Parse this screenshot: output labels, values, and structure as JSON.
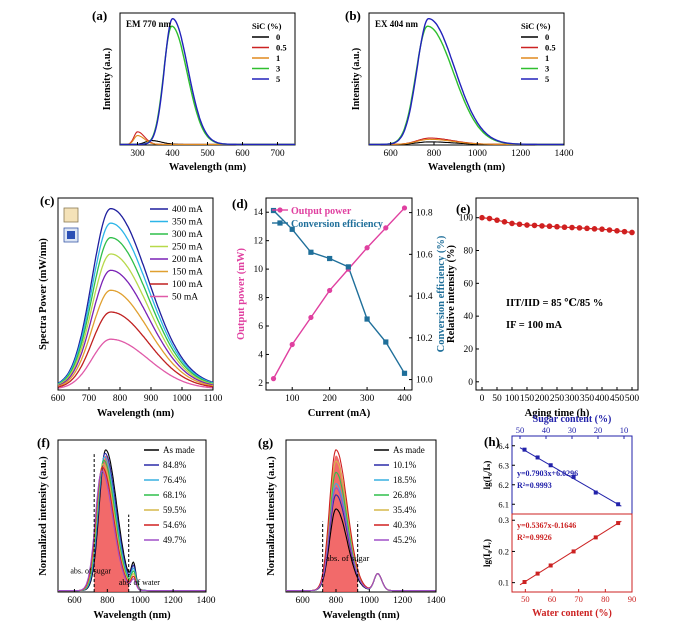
{
  "chart_data": [
    {
      "panel": "(a)",
      "type": "line",
      "annotation": "EM 770 nm",
      "legend_title": "SiC (%)",
      "legend": [
        "0",
        "0.5",
        "1",
        "3",
        "5"
      ],
      "colors": [
        "#000000",
        "#cc2222",
        "#e08a1e",
        "#2fbf2f",
        "#2222bb"
      ],
      "xlabel": "Wavelength (nm)",
      "ylabel": "Intensity (a.u.)",
      "xticks": [
        "300",
        "400",
        "500",
        "600",
        "700"
      ],
      "xlim": [
        250,
        750
      ],
      "ylim": [
        0,
        1.05
      ],
      "peaks": [
        {
          "center": 340,
          "amp": 0.03,
          "wl": 25,
          "wr": 40
        },
        {
          "center": 300,
          "amp": 0.1,
          "wl": 14,
          "wr": 28
        },
        {
          "center": 300,
          "amp": 0.07,
          "wl": 14,
          "wr": 28
        },
        {
          "center": 398,
          "amp": 0.94,
          "wl": 33,
          "wr": 62
        },
        {
          "center": 400,
          "amp": 1.0,
          "wl": 33,
          "wr": 62
        }
      ]
    },
    {
      "panel": "(b)",
      "type": "line",
      "annotation": "EX 404 nm",
      "legend_title": "SiC (%)",
      "legend": [
        "0",
        "0.5",
        "1",
        "3",
        "5"
      ],
      "colors": [
        "#000000",
        "#cc2222",
        "#e08a1e",
        "#2fbf2f",
        "#2222bb"
      ],
      "xlabel": "Wavelength (nm)",
      "ylabel": "Intensity (a.u.)",
      "xticks": [
        "600",
        "800",
        "1000",
        "1200",
        "1400"
      ],
      "xlim": [
        500,
        1400
      ],
      "ylim": [
        0,
        1.05
      ],
      "peaks": [
        {
          "center": 780,
          "amp": 0.02,
          "wl": 80,
          "wr": 150
        },
        {
          "center": 780,
          "amp": 0.05,
          "wl": 80,
          "wr": 150
        },
        {
          "center": 780,
          "amp": 0.04,
          "wl": 80,
          "wr": 150
        },
        {
          "center": 770,
          "amp": 0.94,
          "wl": 75,
          "wr": 170
        },
        {
          "center": 775,
          "amp": 1.0,
          "wl": 75,
          "wr": 170
        }
      ]
    },
    {
      "panel": "(c)",
      "type": "line",
      "legend": [
        "400 mA",
        "350 mA",
        "300 mA",
        "250 mA",
        "200 mA",
        "150 mA",
        "100 mA",
        "50  mA"
      ],
      "colors": [
        "#1f1f9e",
        "#2cb5e8",
        "#2fbf4a",
        "#b7d94a",
        "#7a22b5",
        "#e0a030",
        "#c02020",
        "#e05aa8"
      ],
      "amps": [
        1.0,
        0.92,
        0.84,
        0.75,
        0.66,
        0.55,
        0.43,
        0.28
      ],
      "xlabel": "Wavelength (nm)",
      "ylabel": "Spectra Power (mW/nm)",
      "xticks": [
        "600",
        "700",
        "800",
        "900",
        "1000",
        "1100"
      ],
      "xlim": [
        600,
        1100
      ],
      "ylim": [
        0,
        1.08
      ]
    },
    {
      "panel": "(d)",
      "type": "line",
      "x": [
        50,
        100,
        150,
        200,
        250,
        300,
        350,
        400
      ],
      "series": [
        {
          "name": "Output power",
          "axis": "left",
          "color": "#e040a0",
          "values": [
            2.3,
            4.7,
            6.6,
            8.5,
            10.0,
            11.5,
            12.9,
            14.3
          ]
        },
        {
          "name": "Conversion efficiency",
          "axis": "right",
          "color": "#1f6f9a",
          "values": [
            10.81,
            10.72,
            10.61,
            10.58,
            10.54,
            10.29,
            10.18,
            10.03
          ]
        }
      ],
      "xlabel": "Current (mA)",
      "ylabel_left": "Output power (mW)",
      "ylabel_right": "Conversion efficiency (%)",
      "xticks": [
        "100",
        "200",
        "300",
        "400"
      ],
      "yticks_left": [
        "2",
        "4",
        "6",
        "8",
        "10",
        "12",
        "14"
      ],
      "yticks_right": [
        "10.0",
        "10.2",
        "10.4",
        "10.6",
        "10.8"
      ],
      "xlim": [
        30,
        420
      ],
      "ylim_left": [
        1.5,
        15
      ],
      "ylim_right": [
        9.95,
        10.87
      ]
    },
    {
      "panel": "(e)",
      "type": "scatter",
      "x": [
        0,
        25,
        50,
        75,
        100,
        125,
        150,
        175,
        200,
        225,
        250,
        275,
        300,
        325,
        350,
        375,
        400,
        425,
        450,
        475,
        500
      ],
      "values": [
        100,
        99.5,
        98.5,
        97.5,
        96.5,
        96,
        95.5,
        95.3,
        95,
        94.8,
        94.5,
        94.2,
        94,
        93.8,
        93.5,
        93.2,
        93,
        92.5,
        92,
        91.5,
        91
      ],
      "color": "#d02020",
      "annotations": [
        "IIT/IID = 85 ℃/85 %",
        "IF = 100 mA"
      ],
      "xlabel": "Aging time (h)",
      "ylabel": "Relative intensity (%)",
      "xticks": [
        "0",
        "50",
        "100",
        "150",
        "200",
        "250",
        "300",
        "350",
        "400",
        "450",
        "500"
      ],
      "yticks": [
        "0",
        "20",
        "40",
        "60",
        "80",
        "100"
      ],
      "xlim": [
        -20,
        520
      ],
      "ylim": [
        -5,
        112
      ]
    },
    {
      "panel": "(f)",
      "type": "line",
      "legend": [
        "As made",
        "84.8%",
        "76.4%",
        "68.1%",
        "59.5%",
        "54.6%",
        "49.7%"
      ],
      "colors": [
        "#000000",
        "#2a2aa8",
        "#39b0e0",
        "#2fbf4a",
        "#d6b84a",
        "#d02020",
        "#a050c8"
      ],
      "annotations": [
        "abs. of sugar",
        "abs. of water"
      ],
      "xlabel": "Wavelength (nm)",
      "ylabel": "Normalized intensity (a.u.)",
      "xticks": [
        "600",
        "800",
        "1000",
        "1200",
        "1400"
      ],
      "xlim": [
        500,
        1400
      ],
      "ylim": [
        0,
        1.08
      ],
      "shade_range": [
        720,
        930
      ]
    },
    {
      "panel": "(g)",
      "type": "line",
      "legend": [
        "As made",
        "10.1%",
        "18.5%",
        "26.8%",
        "35.4%",
        "40.3%",
        "45.2%"
      ],
      "colors": [
        "#000000",
        "#2a2aa8",
        "#39b0e0",
        "#2fbf4a",
        "#d6b84a",
        "#d02020",
        "#a050c8"
      ],
      "amps": [
        0.58,
        0.68,
        0.76,
        0.84,
        0.92,
        1.0,
        0.73
      ],
      "annotations": [
        "abs. of sugar"
      ],
      "xlabel": "Wavelength (nm)",
      "ylabel": "Normalized intensity (a.u.)",
      "xticks": [
        "600",
        "800",
        "1000",
        "1200",
        "1400"
      ],
      "xlim": [
        500,
        1400
      ],
      "ylim": [
        0,
        1.08
      ],
      "shade_range": [
        720,
        930
      ]
    },
    {
      "panel": "(h)",
      "type": "scatter",
      "top": {
        "x": [
          49.7,
          54.6,
          59.5,
          68.1,
          76.4,
          84.8
        ],
        "values": [
          6.38,
          6.34,
          6.3,
          6.24,
          6.16,
          6.1
        ],
        "color": "#2222aa",
        "equation": "y=0.7903x+6.0296",
        "r2": "R²=0.9993",
        "ylabel": "lg(I₀/Iₛ)",
        "xlabel": "Sugar content (%)",
        "xticks": [
          "50",
          "40",
          "30",
          "20",
          "10"
        ],
        "yticks": [
          "6.1",
          "6.2",
          "6.3",
          "6.4"
        ],
        "ylim": [
          6.05,
          6.45
        ]
      },
      "bottom": {
        "x": [
          49.7,
          54.6,
          59.5,
          68.1,
          76.4,
          84.8
        ],
        "values": [
          0.102,
          0.129,
          0.155,
          0.2,
          0.245,
          0.291
        ],
        "color": "#cc2222",
        "equation": "y=0.5367x-0.1646",
        "r2": "R²=0.9926",
        "ylabel": "lg(I₀/Iᵥ)",
        "xlabel": "Water content  (%)",
        "xticks": [
          "50",
          "60",
          "70",
          "80",
          "90"
        ],
        "yticks": [
          "0.1",
          "0.2",
          "0.3"
        ],
        "ylim": [
          0.07,
          0.32
        ]
      },
      "xlim": [
        45,
        90
      ]
    }
  ]
}
